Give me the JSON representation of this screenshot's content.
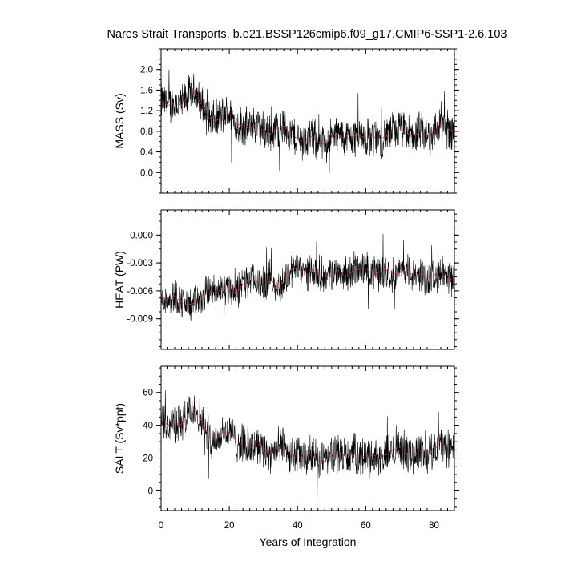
{
  "title": "Nares Strait Transports, b.e21.BSSP126cmip6.f09_g17.CMIP6-SSP1-2.6.103",
  "chart_data": [
    {
      "id": "mass",
      "type": "line",
      "ylabel": "MASS (Sv)",
      "xlabel": "",
      "xlim": [
        0,
        86
      ],
      "ylim": [
        -0.4,
        2.4
      ],
      "yticks": [
        0.0,
        0.4,
        0.8,
        1.2,
        1.6,
        2.0
      ],
      "ytick_labels": [
        "0.0",
        "0.4",
        "0.8",
        "1.2",
        "1.6",
        "2.0"
      ],
      "yminor_step": 0.1,
      "grid": false,
      "smooth_color": "#e03030",
      "raw_color": "#000000",
      "series": [
        {
          "style": "raw-monthly",
          "amplitude": 0.45
        },
        {
          "style": "annual-mean",
          "x": [
            0,
            2,
            4,
            6,
            8,
            10,
            12,
            14,
            16,
            18,
            20,
            22,
            24,
            26,
            28,
            30,
            32,
            34,
            36,
            38,
            40,
            42,
            44,
            46,
            48,
            50,
            52,
            54,
            56,
            58,
            60,
            62,
            64,
            66,
            68,
            70,
            72,
            74,
            76,
            78,
            80,
            82,
            84,
            86
          ],
          "values": [
            1.4,
            1.3,
            1.35,
            1.3,
            1.5,
            1.55,
            1.3,
            1.05,
            1.0,
            1.1,
            1.15,
            0.95,
            0.9,
            0.85,
            0.95,
            0.8,
            0.75,
            0.85,
            0.9,
            0.75,
            0.65,
            0.6,
            0.7,
            0.6,
            0.55,
            0.7,
            0.75,
            0.65,
            0.7,
            0.75,
            0.65,
            0.7,
            0.65,
            0.7,
            0.8,
            0.85,
            0.75,
            0.7,
            0.8,
            0.7,
            0.8,
            0.95,
            0.85,
            0.8
          ]
        }
      ]
    },
    {
      "id": "heat",
      "type": "line",
      "ylabel": "HEAT (PW)",
      "xlabel": "",
      "xlim": [
        0,
        86
      ],
      "ylim": [
        -0.0123,
        0.0027
      ],
      "yticks": [
        -0.009,
        -0.006,
        -0.003,
        0.0
      ],
      "ytick_labels": [
        "-0.009",
        "-0.006",
        "-0.003",
        "0.000"
      ],
      "yminor_step": 0.00075,
      "grid": false,
      "smooth_color": "#e03030",
      "raw_color": "#000000",
      "series": [
        {
          "style": "raw-monthly",
          "amplitude": 0.0022
        },
        {
          "style": "annual-mean",
          "x": [
            0,
            2,
            4,
            6,
            8,
            10,
            12,
            14,
            16,
            18,
            20,
            22,
            24,
            26,
            28,
            30,
            32,
            34,
            36,
            38,
            40,
            42,
            44,
            46,
            48,
            50,
            52,
            54,
            56,
            58,
            60,
            62,
            64,
            66,
            68,
            70,
            72,
            74,
            76,
            78,
            80,
            82,
            84,
            86
          ],
          "values": [
            -0.007,
            -0.0068,
            -0.0065,
            -0.0072,
            -0.0075,
            -0.0073,
            -0.0068,
            -0.006,
            -0.0062,
            -0.0058,
            -0.0055,
            -0.0063,
            -0.0052,
            -0.0048,
            -0.005,
            -0.0055,
            -0.0045,
            -0.0058,
            -0.005,
            -0.0038,
            -0.0035,
            -0.0042,
            -0.0037,
            -0.004,
            -0.0045,
            -0.0042,
            -0.0038,
            -0.0045,
            -0.004,
            -0.0037,
            -0.0035,
            -0.0043,
            -0.004,
            -0.0038,
            -0.0042,
            -0.004,
            -0.0036,
            -0.0045,
            -0.0042,
            -0.0048,
            -0.0043,
            -0.004,
            -0.005,
            -0.0045
          ]
        }
      ]
    },
    {
      "id": "salt",
      "type": "line",
      "ylabel": "SALT (Sv*ppt)",
      "xlabel": "Years of Integration",
      "xlim": [
        0,
        86
      ],
      "ylim": [
        -12,
        76
      ],
      "yticks": [
        0,
        20,
        40,
        60
      ],
      "ytick_labels": [
        "0",
        "20",
        "40",
        "60"
      ],
      "xticks": [
        0,
        20,
        40,
        60,
        80
      ],
      "xtick_labels": [
        "0",
        "20",
        "40",
        "60",
        "80"
      ],
      "yminor_step": 5,
      "grid": false,
      "smooth_color": "#e03030",
      "raw_color": "#000000",
      "series": [
        {
          "style": "raw-monthly",
          "amplitude": 14
        },
        {
          "style": "annual-mean",
          "x": [
            0,
            2,
            4,
            6,
            8,
            10,
            12,
            14,
            16,
            18,
            20,
            22,
            24,
            26,
            28,
            30,
            32,
            34,
            36,
            38,
            40,
            42,
            44,
            46,
            48,
            50,
            52,
            54,
            56,
            58,
            60,
            62,
            64,
            66,
            68,
            70,
            72,
            74,
            76,
            78,
            80,
            82,
            84,
            86
          ],
          "values": [
            44,
            40,
            42,
            40,
            47,
            50,
            42,
            33,
            31,
            35,
            36,
            30,
            28,
            26,
            30,
            25,
            23,
            26,
            28,
            23,
            21,
            19,
            22,
            19,
            18,
            22,
            24,
            21,
            22,
            23,
            20,
            22,
            20,
            22,
            25,
            27,
            23,
            22,
            25,
            22,
            25,
            30,
            27,
            25
          ]
        }
      ]
    }
  ]
}
